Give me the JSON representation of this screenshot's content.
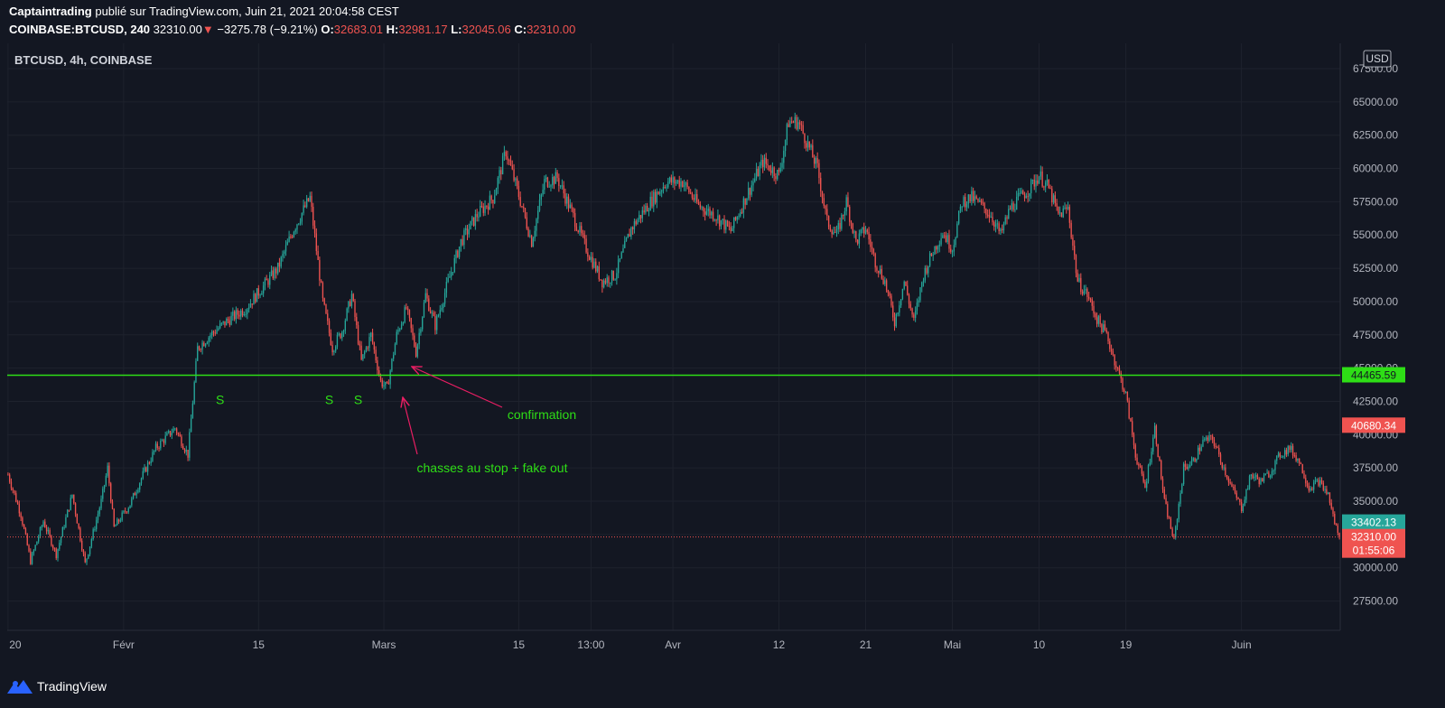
{
  "header": {
    "author": "Captaintrading",
    "published_text": " publié sur TradingView.com, Juin 21, 2021 20:04:58 CEST",
    "symbol": "COINBASE:BTCUSD, 240",
    "price": "32310.00",
    "change_arrow": "▼",
    "change": "−3275.78 (−9.21%)",
    "o_label": "O:",
    "o_value": "32683.01",
    "h_label": "H:",
    "h_value": "32981.17",
    "l_label": "L:",
    "l_value": "32045.06",
    "c_label": "C:",
    "c_value": "32310.00"
  },
  "footer": {
    "brand": "TradingView",
    "logo_icon": "tradingview-logo-icon"
  },
  "colors": {
    "background": "#131722",
    "grid": "#1e222d",
    "up": "#26a69a",
    "down": "#ef5350",
    "support": "#2ede16",
    "annotation": "#2ede16",
    "arrow": "#e91e63"
  },
  "chart_data": {
    "type": "candlestick",
    "title": "BTCUSD, 4h, COINBASE",
    "currency_label": "USD",
    "x_ticks": [
      {
        "label": "20",
        "i": 0
      },
      {
        "label": "Févr",
        "i": 72
      },
      {
        "label": "15",
        "i": 156
      },
      {
        "label": "Mars",
        "i": 234
      },
      {
        "label": "15",
        "i": 318
      },
      {
        "label": "13:00",
        "i": 363
      },
      {
        "label": "Avr",
        "i": 414
      },
      {
        "label": "12",
        "i": 480
      },
      {
        "label": "21",
        "i": 534
      },
      {
        "label": "Mai",
        "i": 588
      },
      {
        "label": "10",
        "i": 642
      },
      {
        "label": "19",
        "i": 696
      },
      {
        "label": "Juin",
        "i": 768
      }
    ],
    "y_ticks": [
      27500,
      30000,
      32500,
      35000,
      37500,
      40000,
      42500,
      45000,
      47500,
      50000,
      52500,
      55000,
      57500,
      60000,
      62500,
      65000,
      67500
    ],
    "y_range": [
      25300,
      69400
    ],
    "price_tags": [
      {
        "label": "44465.59",
        "value": 44465.59,
        "color": "#2ede16",
        "text_color": "#131722"
      },
      {
        "label": "40680.34",
        "value": 40680.34,
        "color": "#ef5350",
        "text_color": "#ffffff"
      },
      {
        "label": "33402.13",
        "value": 33402.13,
        "color": "#26a69a",
        "text_color": "#ffffff"
      },
      {
        "label": "32310.00",
        "sublabel": "01:55:06",
        "value": 32310.0,
        "color": "#ef5350",
        "text_color": "#ffffff"
      }
    ],
    "support_level": 44465.59,
    "last_price": 32310.0,
    "anchors": [
      [
        0,
        37000
      ],
      [
        8,
        34000
      ],
      [
        14,
        30500
      ],
      [
        22,
        33500
      ],
      [
        30,
        31000
      ],
      [
        40,
        35500
      ],
      [
        48,
        30300
      ],
      [
        58,
        35000
      ],
      [
        62,
        37500
      ],
      [
        66,
        33000
      ],
      [
        76,
        34800
      ],
      [
        84,
        37000
      ],
      [
        92,
        39000
      ],
      [
        104,
        40500
      ],
      [
        112,
        38500
      ],
      [
        118,
        46500
      ],
      [
        126,
        47500
      ],
      [
        136,
        48500
      ],
      [
        148,
        49500
      ],
      [
        158,
        51000
      ],
      [
        168,
        52500
      ],
      [
        178,
        55500
      ],
      [
        188,
        57800
      ],
      [
        196,
        50000
      ],
      [
        202,
        46500
      ],
      [
        208,
        47800
      ],
      [
        214,
        50500
      ],
      [
        220,
        45500
      ],
      [
        226,
        47500
      ],
      [
        232,
        44000
      ],
      [
        236,
        43500
      ],
      [
        242,
        47500
      ],
      [
        248,
        49500
      ],
      [
        254,
        46200
      ],
      [
        260,
        50500
      ],
      [
        266,
        48200
      ],
      [
        274,
        51500
      ],
      [
        282,
        54500
      ],
      [
        292,
        56500
      ],
      [
        302,
        57800
      ],
      [
        310,
        61300
      ],
      [
        318,
        58000
      ],
      [
        326,
        54500
      ],
      [
        334,
        59000
      ],
      [
        342,
        59300
      ],
      [
        350,
        57000
      ],
      [
        360,
        54000
      ],
      [
        370,
        51500
      ],
      [
        378,
        52000
      ],
      [
        388,
        55500
      ],
      [
        400,
        57500
      ],
      [
        410,
        59000
      ],
      [
        420,
        59000
      ],
      [
        430,
        57200
      ],
      [
        440,
        56500
      ],
      [
        450,
        55300
      ],
      [
        460,
        58000
      ],
      [
        470,
        60500
      ],
      [
        480,
        59500
      ],
      [
        486,
        63500
      ],
      [
        492,
        63500
      ],
      [
        498,
        61800
      ],
      [
        504,
        60000
      ],
      [
        510,
        56000
      ],
      [
        516,
        55000
      ],
      [
        522,
        57500
      ],
      [
        528,
        54500
      ],
      [
        534,
        55500
      ],
      [
        540,
        53000
      ],
      [
        546,
        51500
      ],
      [
        552,
        48500
      ],
      [
        558,
        51500
      ],
      [
        564,
        48500
      ],
      [
        570,
        52000
      ],
      [
        576,
        53800
      ],
      [
        582,
        55200
      ],
      [
        588,
        54000
      ],
      [
        594,
        57500
      ],
      [
        600,
        57800
      ],
      [
        606,
        57200
      ],
      [
        612,
        56500
      ],
      [
        618,
        55000
      ],
      [
        624,
        57000
      ],
      [
        630,
        57800
      ],
      [
        636,
        58500
      ],
      [
        642,
        59500
      ],
      [
        648,
        58500
      ],
      [
        654,
        56500
      ],
      [
        660,
        57000
      ],
      [
        666,
        51500
      ],
      [
        672,
        50500
      ],
      [
        678,
        48700
      ],
      [
        684,
        47500
      ],
      [
        690,
        45200
      ],
      [
        696,
        43000
      ],
      [
        702,
        38500
      ],
      [
        708,
        36000
      ],
      [
        714,
        40500
      ],
      [
        720,
        35000
      ],
      [
        726,
        32000
      ],
      [
        732,
        37500
      ],
      [
        738,
        38000
      ],
      [
        744,
        39500
      ],
      [
        750,
        39700
      ],
      [
        756,
        37800
      ],
      [
        762,
        36000
      ],
      [
        768,
        34500
      ],
      [
        774,
        37000
      ],
      [
        780,
        36500
      ],
      [
        786,
        37200
      ],
      [
        792,
        38500
      ],
      [
        798,
        39000
      ],
      [
        804,
        38000
      ],
      [
        810,
        36000
      ],
      [
        816,
        36500
      ],
      [
        822,
        35500
      ],
      [
        826,
        33400
      ],
      [
        829,
        32310
      ]
    ],
    "annotations": [
      {
        "text": "S",
        "i": 132,
        "value": 43500
      },
      {
        "text": "S",
        "i": 200,
        "value": 43500
      },
      {
        "text": "S",
        "i": 218,
        "value": 43500
      },
      {
        "text": "confirmation",
        "text_x": 600,
        "text_y": 416
      },
      {
        "text": "chasses au stop + fake out",
        "text_x": 545,
        "text_y": 475
      }
    ]
  }
}
